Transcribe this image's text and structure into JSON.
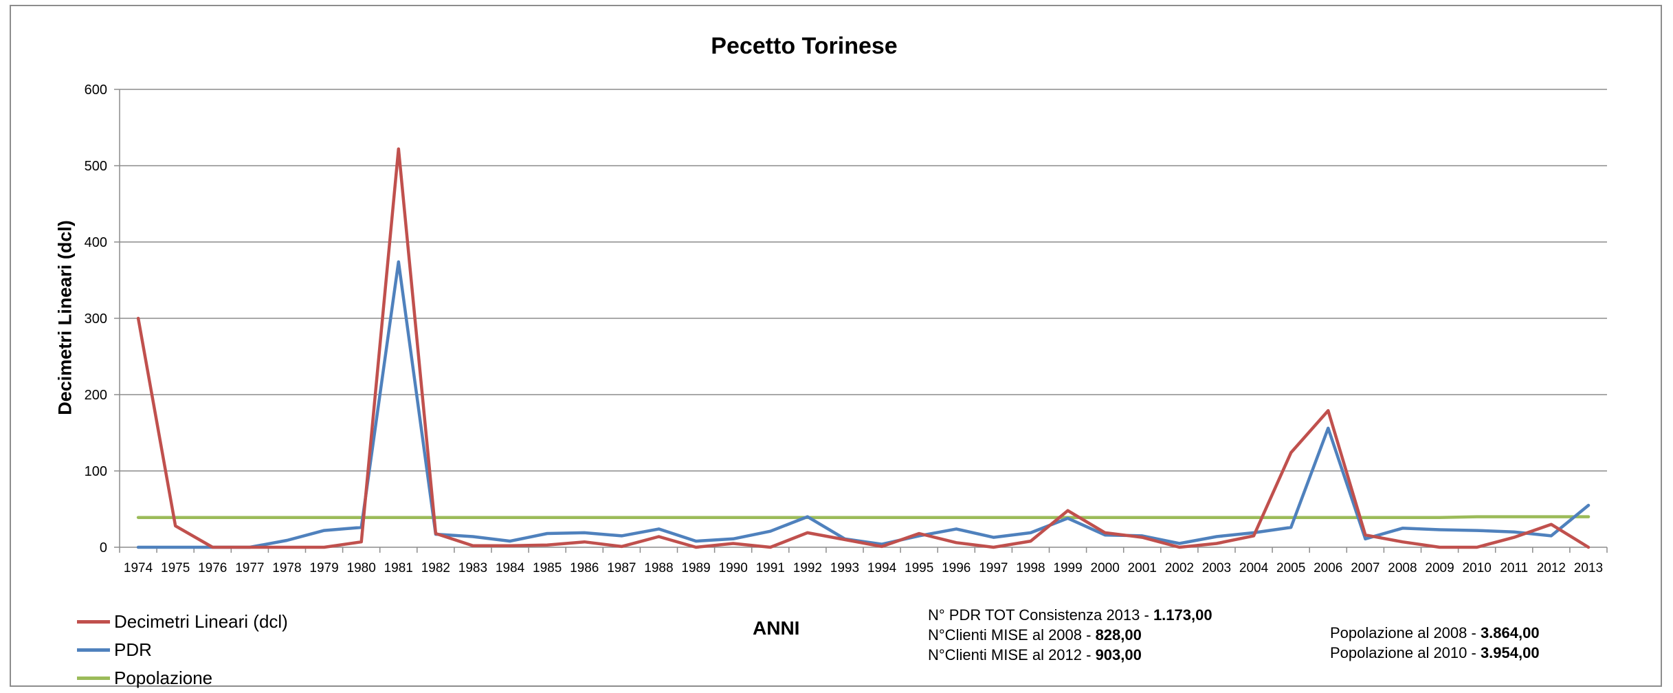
{
  "chart_data": {
    "type": "line",
    "title": "Pecetto Torinese",
    "xlabel": "ANNI",
    "ylabel": "Decimetri Lineari (dcl)",
    "ylim": [
      0,
      600
    ],
    "yticks": [
      0,
      100,
      200,
      300,
      400,
      500,
      600
    ],
    "grid": true,
    "legend_position": "bottom-left",
    "categories": [
      "1974",
      "1975",
      "1976",
      "1977",
      "1978",
      "1979",
      "1980",
      "1981",
      "1982",
      "1983",
      "1984",
      "1985",
      "1986",
      "1987",
      "1988",
      "1989",
      "1990",
      "1991",
      "1992",
      "1993",
      "1994",
      "1995",
      "1996",
      "1997",
      "1998",
      "1999",
      "2000",
      "2001",
      "2002",
      "2003",
      "2004",
      "2005",
      "2006",
      "2007",
      "2008",
      "2009",
      "2010",
      "2011",
      "2012",
      "2013"
    ],
    "series": [
      {
        "name": "Decimetri Lineari (dcl)",
        "color": "#c0504d",
        "values": [
          300,
          28,
          0,
          0,
          0,
          0,
          7,
          522,
          18,
          2,
          2,
          3,
          7,
          1,
          14,
          0,
          5,
          0,
          19,
          10,
          1,
          18,
          6,
          0,
          8,
          48,
          19,
          13,
          0,
          5,
          15,
          124,
          179,
          16,
          7,
          0,
          0,
          13,
          30,
          0
        ]
      },
      {
        "name": "PDR",
        "color": "#4f81bd",
        "values": [
          0,
          0,
          0,
          0,
          9,
          22,
          26,
          374,
          17,
          14,
          8,
          18,
          19,
          15,
          24,
          8,
          11,
          21,
          40,
          11,
          4,
          15,
          24,
          13,
          19,
          38,
          16,
          15,
          5,
          14,
          19,
          26,
          156,
          11,
          25,
          23,
          22,
          20,
          15,
          55
        ]
      },
      {
        "name": "Popolazione",
        "color": "#9bbb59",
        "values": [
          39,
          39,
          39,
          39,
          39,
          39,
          39,
          39,
          39,
          39,
          39,
          39,
          39,
          39,
          39,
          39,
          39,
          39,
          39,
          39,
          39,
          39,
          39,
          39,
          39,
          39,
          39,
          39,
          39,
          39,
          39,
          39,
          39,
          39,
          39,
          39,
          40,
          40,
          40,
          40
        ]
      }
    ]
  },
  "info": {
    "pdr_tot_label": "N° PDR TOT Consistenza 2013 - ",
    "pdr_tot_value": "1.173,00",
    "clienti_2008_label": "N°Clienti MISE al 2008 - ",
    "clienti_2008_value": "828,00",
    "clienti_2012_label": "N°Clienti MISE al 2012 - ",
    "clienti_2012_value": "903,00",
    "pop_2008_label": "Popolazione al 2008 - ",
    "pop_2008_value": "3.864,00",
    "pop_2010_label": "Popolazione al 2010 - ",
    "pop_2010_value": "3.954,00"
  }
}
